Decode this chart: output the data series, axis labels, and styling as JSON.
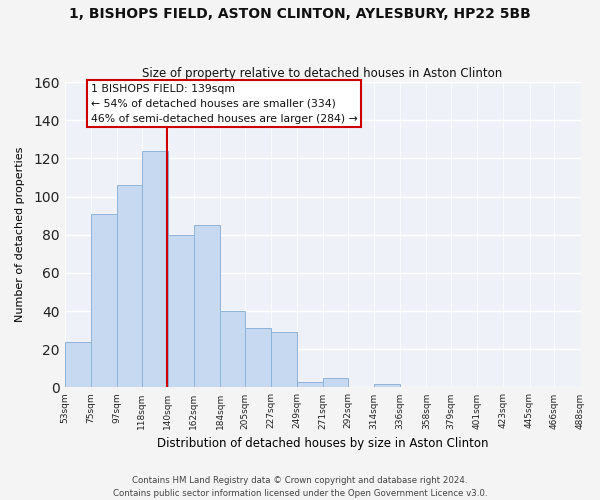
{
  "title": "1, BISHOPS FIELD, ASTON CLINTON, AYLESBURY, HP22 5BB",
  "subtitle": "Size of property relative to detached houses in Aston Clinton",
  "xlabel": "Distribution of detached houses by size in Aston Clinton",
  "ylabel": "Number of detached properties",
  "bin_labels": [
    "53sqm",
    "75sqm",
    "97sqm",
    "118sqm",
    "140sqm",
    "162sqm",
    "184sqm",
    "205sqm",
    "227sqm",
    "249sqm",
    "271sqm",
    "292sqm",
    "314sqm",
    "336sqm",
    "358sqm",
    "379sqm",
    "401sqm",
    "423sqm",
    "445sqm",
    "466sqm",
    "488sqm"
  ],
  "bar_values": [
    24,
    91,
    106,
    124,
    80,
    85,
    40,
    31,
    29,
    3,
    5,
    0,
    2,
    0,
    0,
    0,
    0,
    0,
    0,
    0
  ],
  "bar_color": "#c6d9f0",
  "bar_edge_color": "#8fb4d9",
  "property_line_x": 139,
  "annotation_title": "1 BISHOPS FIELD: 139sqm",
  "annotation_line1": "← 54% of detached houses are smaller (334)",
  "annotation_line2": "46% of semi-detached houses are larger (284) →",
  "annotation_box_color": "#ffffff",
  "annotation_box_edge": "#cc0000",
  "vline_color": "#cc0000",
  "ylim": [
    0,
    160
  ],
  "yticks": [
    0,
    20,
    40,
    60,
    80,
    100,
    120,
    140,
    160
  ],
  "footer1": "Contains HM Land Registry data © Crown copyright and database right 2024.",
  "footer2": "Contains public sector information licensed under the Open Government Licence v3.0.",
  "bg_color": "#f4f4f4",
  "plot_bg_color": "#eef2f8",
  "grid_color": "#ffffff"
}
